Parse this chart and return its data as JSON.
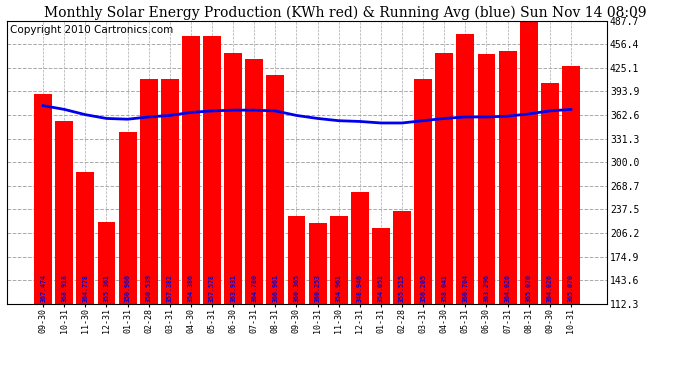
{
  "title": "Monthly Solar Energy Production (KWh red) & Running Avg (blue) Sun Nov 14 08:09",
  "copyright": "Copyright 2010 Cartronics.com",
  "categories": [
    "09-30",
    "10-31",
    "11-30",
    "12-31",
    "01-31",
    "02-28",
    "03-31",
    "04-30",
    "05-31",
    "06-30",
    "07-31",
    "08-31",
    "09-30",
    "10-31",
    "11-30",
    "12-31",
    "01-31",
    "02-28",
    "03-31",
    "04-30",
    "05-31",
    "06-30",
    "07-31",
    "08-31",
    "09-30",
    "10-31"
  ],
  "bar_values": [
    390,
    355,
    287,
    221,
    340,
    410,
    410,
    467,
    467,
    445,
    437,
    415,
    228,
    220,
    228,
    260,
    213,
    235,
    410,
    445,
    470,
    444,
    448,
    487,
    405,
    428
  ],
  "running_avg": [
    375,
    370,
    363,
    358,
    357,
    360,
    362,
    366,
    368,
    369,
    369,
    368,
    362,
    358,
    355,
    354,
    352,
    352,
    355,
    358,
    360,
    360,
    361,
    364,
    368,
    370
  ],
  "bar_labels": [
    "367.474",
    "368.918",
    "364.778",
    "355.361",
    "350.966",
    "350.539",
    "357.382",
    "354.386",
    "357.578",
    "363.931",
    "364.780",
    "366.961",
    "360.365",
    "360.253",
    "354.961",
    "348.946",
    "354.051",
    "355.515",
    "356.205",
    "358.041",
    "360.704",
    "363.296",
    "364.026",
    "365.070",
    "364.026",
    "365.070"
  ],
  "ylim_min": 112.3,
  "ylim_max": 487.7,
  "yticks": [
    112.3,
    143.6,
    174.9,
    206.2,
    237.5,
    268.7,
    300.0,
    331.3,
    362.6,
    393.9,
    425.1,
    456.4,
    487.7
  ],
  "bar_color": "#ff0000",
  "avg_color": "#0000ee",
  "label_color": "#0000cc",
  "background_color": "#ffffff",
  "grid_color": "#aaaaaa",
  "title_color": "#000000",
  "title_fontsize": 10,
  "copyright_fontsize": 7.5
}
